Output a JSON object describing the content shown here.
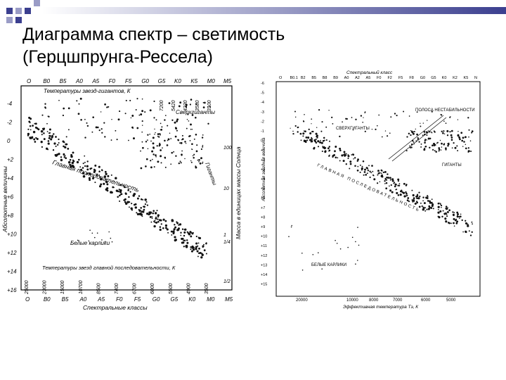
{
  "slide": {
    "title_line1": "Диаграмма спектр – светимость",
    "title_line2": "(Герцшпрунга-Рессела)",
    "accent_color": "#3b3f8f"
  },
  "left_figure": {
    "top_classes": [
      "O",
      "B0",
      "B5",
      "A0",
      "A5",
      "F0",
      "F5",
      "G0",
      "G5",
      "K0",
      "K5",
      "M0",
      "M5"
    ],
    "top_label": "Температуры звезд-гигантов, К",
    "giant_temps": [
      "7200",
      "5420",
      "4230",
      "3580",
      "3100"
    ],
    "supergiants_label": "Сверхгиганты",
    "giants_label": "Гиганты",
    "ms_label": "Главная последовательность",
    "wd_label": "Белые карлики",
    "bottom_temp_label": "Температуры звезд главной последовательности, К",
    "ms_temps": [
      "25000",
      "23000",
      "15000",
      "10700",
      "8500",
      "7400",
      "6700",
      "6000",
      "5500",
      "4900",
      "3500"
    ],
    "bottom_classes": [
      "O",
      "B0",
      "B5",
      "A0",
      "A5",
      "F0",
      "F5",
      "G0",
      "G5",
      "K0",
      "M0",
      "M5"
    ],
    "bottom_axis_label": "Спектральные классы",
    "left_axis_label": "Абсолютные величины",
    "right_axis_label": "Масса в единицах массы Солнца",
    "y_ticks": [
      "-4",
      "-2",
      "0",
      "+2",
      "+4",
      "+6",
      "+8",
      "+10",
      "+12",
      "+14",
      "+16"
    ],
    "mass_ticks": [
      "100",
      "10",
      "1",
      "1/4",
      "1/2"
    ]
  },
  "right_figure": {
    "top_label": "Спектральный класс",
    "top_classes": [
      "O",
      "B0.1",
      "B2",
      "B5",
      "B8",
      "B9",
      "A0",
      "A2",
      "A5",
      "F0",
      "F2",
      "F5",
      "F8",
      "G0",
      "G5",
      "K0",
      "K2",
      "K5",
      "N"
    ],
    "instability_label": "ПОЛОСА НЕСТАБИЛЬНОСТИ",
    "supergiants_label": "СВЕРХГИГАНТЫ",
    "giants_label": "ГИГАНТЫ",
    "ms_label": "ГЛАВНАЯ ПОСЛЕДОВАТЕЛЬНОСТЬ",
    "wd_label": "БЕЛЫЕ КАРЛИКИ",
    "y_ticks": [
      "-6",
      "-5",
      "-4",
      "-3",
      "-2",
      "-1",
      "0",
      "+1",
      "+2",
      "+3",
      "+4",
      "+5",
      "+6",
      "+7",
      "+8",
      "+9",
      "+10",
      "+11",
      "+12",
      "+13",
      "+14",
      "+15"
    ],
    "left_axis_label": "Абсолютная звездная величина",
    "x_ticks": [
      "20000",
      "10000",
      "8000",
      "7000",
      "6000",
      "5000"
    ],
    "x_axis_label": "Эффективная температура Tэ, К"
  }
}
